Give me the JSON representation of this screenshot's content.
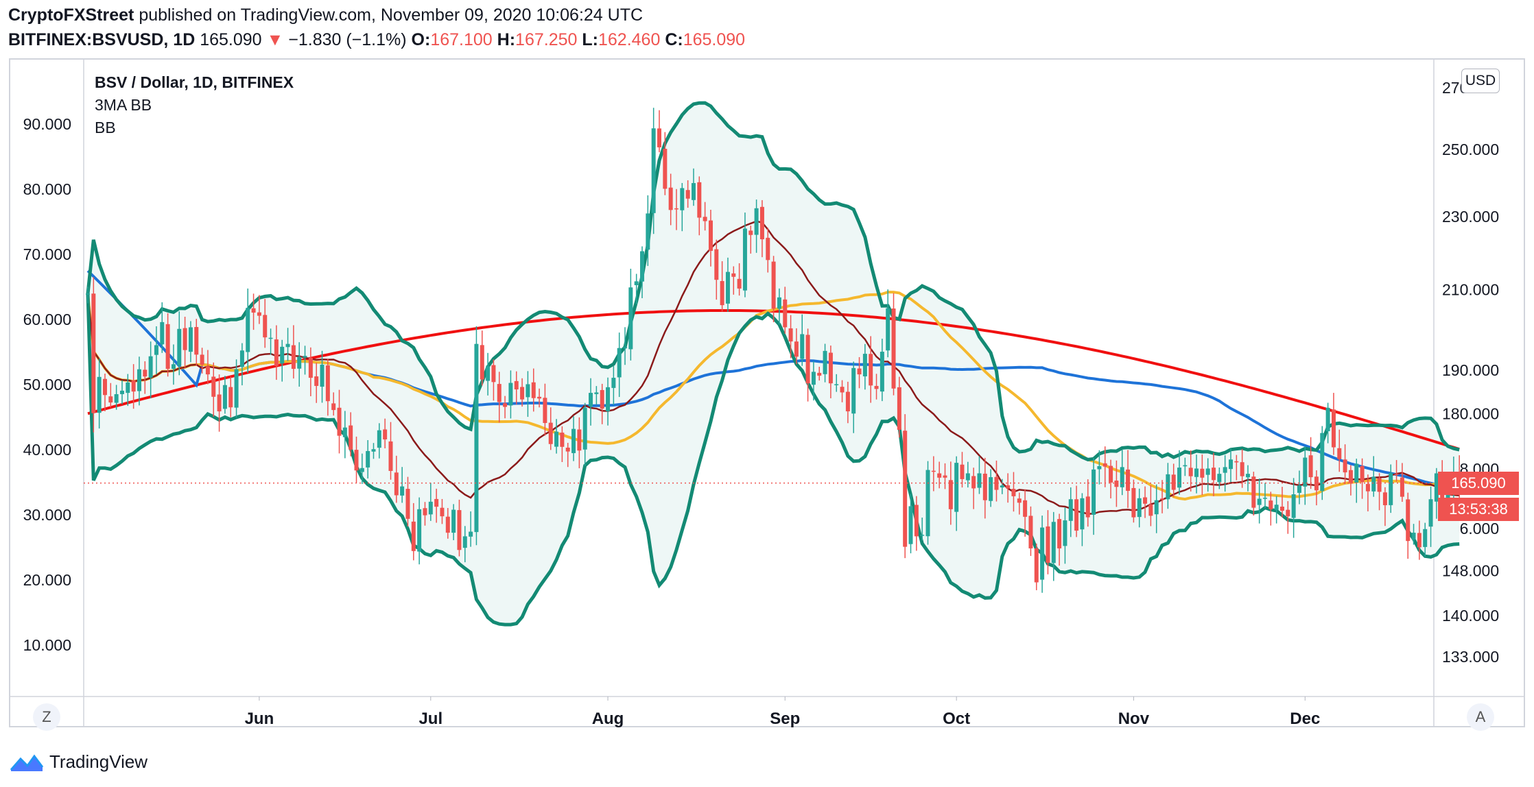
{
  "header": {
    "publisher": "CryptoFXStreet",
    "published_text": "published on TradingView.com, November 09, 2020 10:06:24 UTC",
    "symbol": "BITFINEX:BSVUSD, 1D",
    "last": "165.090",
    "change_arrow": "▼",
    "change": "−1.830 (−1.1%)",
    "o_label": "O:",
    "o": "167.100",
    "h_label": "H:",
    "h": "167.250",
    "l_label": "L:",
    "l": "162.460",
    "c_label": "C:",
    "c": "165.090"
  },
  "legend": {
    "title": "BSV / Dollar, 1D, BITFINEX",
    "line2": "3MA BB",
    "line3": "BB"
  },
  "buttons": {
    "z": "Z",
    "a": "A",
    "usd": "USD"
  },
  "price_tag": {
    "price": "165.090",
    "countdown": "13:53:38"
  },
  "brand": {
    "name": "TradingView"
  },
  "colors": {
    "up": "#26a69a",
    "down": "#ef5350",
    "bb": "#138a74",
    "bb_fill": "#eef7f6",
    "ma_red": "#f01010",
    "ma_blue": "#1e73d8",
    "ma_yellow": "#f5b82e",
    "ma_brown": "#8b1a1a"
  },
  "chart_data": {
    "type": "candlestick",
    "title": "BSV / Dollar, 1D, BITFINEX",
    "x_ticks": [
      "Jun",
      "Jul",
      "Aug",
      "Sep",
      "Oct",
      "Nov",
      "Dec"
    ],
    "x_tick_day_index": [
      30,
      60,
      91,
      122,
      152,
      183,
      213
    ],
    "right_axis": {
      "label": "USD",
      "ticks": [
        133,
        140,
        148,
        156,
        168,
        180,
        190,
        210,
        230,
        250,
        270
      ],
      "tick_labels": [
        "133.000",
        "140.000",
        "148.000",
        "156.000",
        "168.000",
        "180.000",
        "190.000",
        "210.000",
        "230.000",
        "250.000",
        "270.000"
      ]
    },
    "left_axis": {
      "ticks": [
        10,
        20,
        30,
        40,
        50,
        60,
        70,
        80,
        90
      ],
      "tick_labels": [
        "10.000",
        "20.000",
        "30.000",
        "40.000",
        "50.000",
        "60.000",
        "70.000",
        "80.000",
        "90.000"
      ]
    },
    "last_price": 165.09,
    "closes": [
      209.0,
      180.1,
      188.4,
      184.2,
      182.5,
      184.4,
      185.2,
      187.1,
      185.0,
      190.2,
      188.5,
      193.3,
      196.0,
      201.7,
      190.3,
      191.4,
      200.0,
      194.8,
      200.4,
      193.7,
      191.3,
      189.0,
      183.8,
      180.5,
      186.5,
      181.4,
      190.2,
      194.7,
      205.3,
      204.1,
      203.3,
      197.9,
      197.8,
      191.0,
      195.6,
      196.3,
      190.3,
      193.2,
      193.4,
      188.2,
      186.3,
      191.3,
      182.8,
      180.8,
      175.1,
      176.9,
      172.1,
      167.7,
      168.2,
      171.8,
      172.2,
      176.3,
      174.3,
      167.6,
      162.6,
      164.4,
      157.9,
      151.7,
      159.8,
      158.6,
      161.3,
      160.3,
      158.4,
      155.2,
      159.7,
      151.9,
      154.5,
      155.4,
      196.3,
      187.8,
      190.9,
      187.2,
      182.6,
      181.5,
      187.0,
      185.5,
      183.2,
      186.7,
      183.5,
      183.4,
      177.9,
      173.3,
      176.0,
      172.7,
      171.7,
      176.6,
      171.9,
      181.3,
      184.7,
      184.8,
      181.1,
      186.0,
      188.2,
      195.3,
      195.5,
      210.6,
      212.2,
      220.3,
      230.9,
      256.7,
      250.7,
      238.1,
      231.9,
      232.1,
      238.3,
      235.2,
      239.8,
      229.7,
      228.7,
      220.4,
      212.6,
      206.0,
      214.7,
      213.4,
      210.3,
      226.6,
      224.8,
      232.4,
      223.6,
      217.9,
      205.1,
      208.0,
      200.4,
      196.9,
      193.2,
      198.7,
      186.9,
      189.6,
      188.7,
      194.6,
      186.9,
      186.7,
      184.8,
      180.5,
      190.5,
      189.0,
      193.9,
      186.4,
      185.6,
      194.4,
      205.2,
      185.7,
      176.4,
      152.5,
      160.4,
      154.5,
      154.8,
      167.8,
      167.6,
      166.2,
      166.2,
      159.8,
      169.3,
      165.9,
      167.1,
      164.0,
      167.1,
      161.6,
      166.3,
      163.7,
      164.6,
      164.0,
      162.4,
      161.1,
      158.3,
      152.2,
      145.9,
      156.2,
      149.5,
      157.3,
      152.2,
      157.6,
      161.8,
      155.6,
      162.0,
      158.2,
      167.9,
      168.6,
      168.5,
      165.2,
      164.3,
      168.4,
      163.5,
      158.2,
      162.0,
      160.9,
      158.5,
      161.6,
      161.8,
      166.9,
      163.7,
      168.3,
      168.8,
      166.5,
      168.1,
      166.2,
      168.1,
      165.7,
      167.0,
      168.4,
      170.0,
      169.4,
      166.5,
      167.0,
      160.1,
      161.9,
      162.1,
      159.8,
      160.7,
      159.5,
      158.4,
      162.8,
      164.6,
      170.4,
      166.3,
      163.6,
      175.7,
      181.3,
      172.6,
      170.1,
      167.3,
      165.1,
      169.1,
      165.3,
      163.4,
      166.4,
      163.3,
      160.6,
      167.2,
      166.8,
      162.3,
      153.6,
      155.2,
      152.4,
      155.9,
      161.8,
      167.1,
      160.3,
      162.9,
      167.3,
      165.09
    ]
  }
}
